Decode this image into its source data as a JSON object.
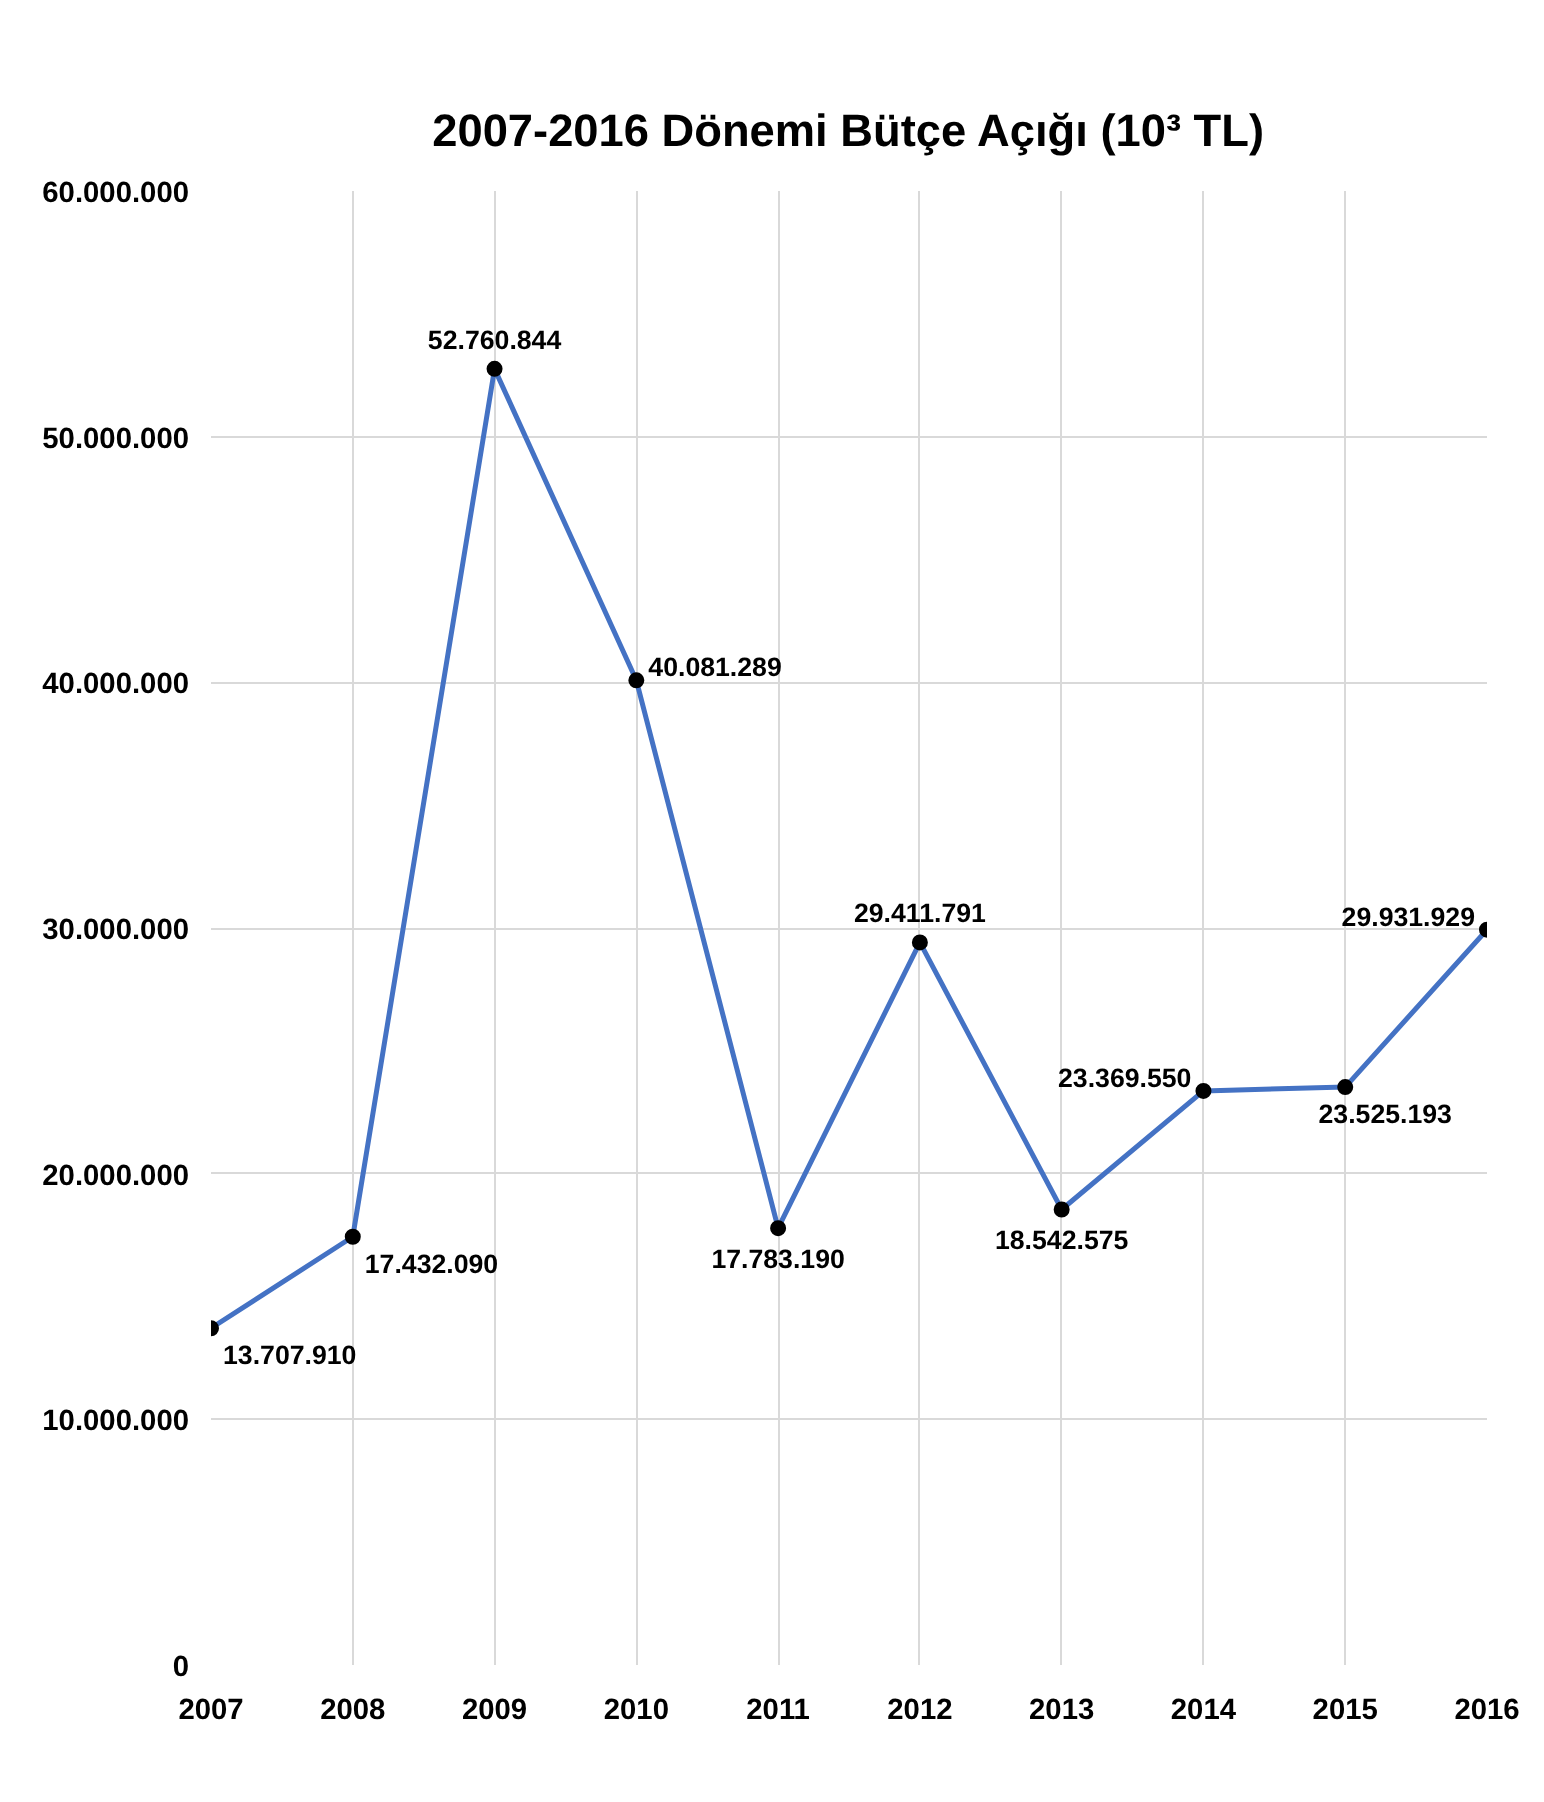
{
  "chart_data": {
    "type": "line",
    "title": "2007-2016 Dönemi Bütçe Açığı (10³ TL)",
    "categories": [
      "2007",
      "2008",
      "2009",
      "2010",
      "2011",
      "2012",
      "2013",
      "2014",
      "2015",
      "2016"
    ],
    "series": [
      {
        "color": "#4472c4",
        "values": [
          13707910,
          17432090,
          52760844,
          40081289,
          17783190,
          29411791,
          18542575,
          23369550,
          23525193,
          29931929
        ],
        "value_labels": [
          "13.707.910",
          "17.432.090",
          "52.760.844",
          "40.081.289",
          "17.783.190",
          "29.411.791",
          "18.542.575",
          "23.369.550",
          "23.525.193",
          "29.931.929"
        ]
      }
    ],
    "ylim": [
      0,
      60000000
    ],
    "yticks": [
      0,
      {
        "value": 10000000,
        "label": "10.000.000"
      },
      {
        "value": 20000000,
        "label": "20.000.000"
      },
      {
        "value": 30000000,
        "label": "30.000.000"
      },
      {
        "value": 40000000,
        "label": "40.000.000"
      },
      {
        "value": 50000000,
        "label": "50.000.000"
      },
      {
        "value": 60000000,
        "label": "60.000.000"
      }
    ],
    "grid": true,
    "marker": "circle",
    "line_style": "solid"
  }
}
